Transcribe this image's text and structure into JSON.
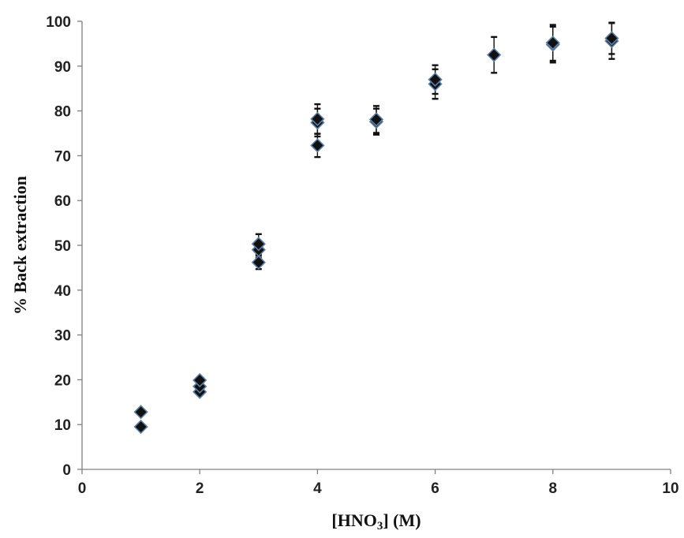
{
  "chart_data": {
    "type": "scatter",
    "title": "",
    "xlabel": "[HNO3] (M)",
    "xlabel_parts": {
      "open": "[HNO",
      "sub": "3",
      "close": "] (M)"
    },
    "ylabel": "% Back extraction",
    "xlim": [
      0,
      10
    ],
    "ylim": [
      0,
      100
    ],
    "xticks": [
      "0",
      "2",
      "4",
      "6",
      "8",
      "10"
    ],
    "yticks": [
      "0",
      "10",
      "20",
      "30",
      "40",
      "50",
      "60",
      "70",
      "80",
      "90",
      "100"
    ],
    "grid": false,
    "legend": "none",
    "marker": "diamond",
    "colors": {
      "marker_fill": "#111111",
      "marker_edge": "#5b7fa6",
      "error_bar": "#111111",
      "axis": "#808080"
    },
    "points": [
      {
        "x": 1,
        "y": 9.5,
        "err": 0
      },
      {
        "x": 1,
        "y": 12.8,
        "err": 0
      },
      {
        "x": 2,
        "y": 17.3,
        "err": 0
      },
      {
        "x": 2,
        "y": 18.5,
        "err": 0
      },
      {
        "x": 2,
        "y": 19.9,
        "err": 0
      },
      {
        "x": 3,
        "y": 46.2,
        "err": 1.5
      },
      {
        "x": 3,
        "y": 49.0,
        "err": 1.8
      },
      {
        "x": 3,
        "y": 50.3,
        "err": 2.2
      },
      {
        "x": 4,
        "y": 72.3,
        "err": 2.6
      },
      {
        "x": 4,
        "y": 77.4,
        "err": 3.1
      },
      {
        "x": 4,
        "y": 78.2,
        "err": 3.3
      },
      {
        "x": 5,
        "y": 77.6,
        "err": 2.9
      },
      {
        "x": 5,
        "y": 78.1,
        "err": 3.0
      },
      {
        "x": 6,
        "y": 86.0,
        "err": 3.3
      },
      {
        "x": 6,
        "y": 87.0,
        "err": 3.2
      },
      {
        "x": 7,
        "y": 92.5,
        "err": 4.0
      },
      {
        "x": 8,
        "y": 94.8,
        "err": 4.0
      },
      {
        "x": 8,
        "y": 95.2,
        "err": 4.0
      },
      {
        "x": 9,
        "y": 95.6,
        "err": 4.0
      },
      {
        "x": 9,
        "y": 96.2,
        "err": 3.5
      }
    ]
  }
}
